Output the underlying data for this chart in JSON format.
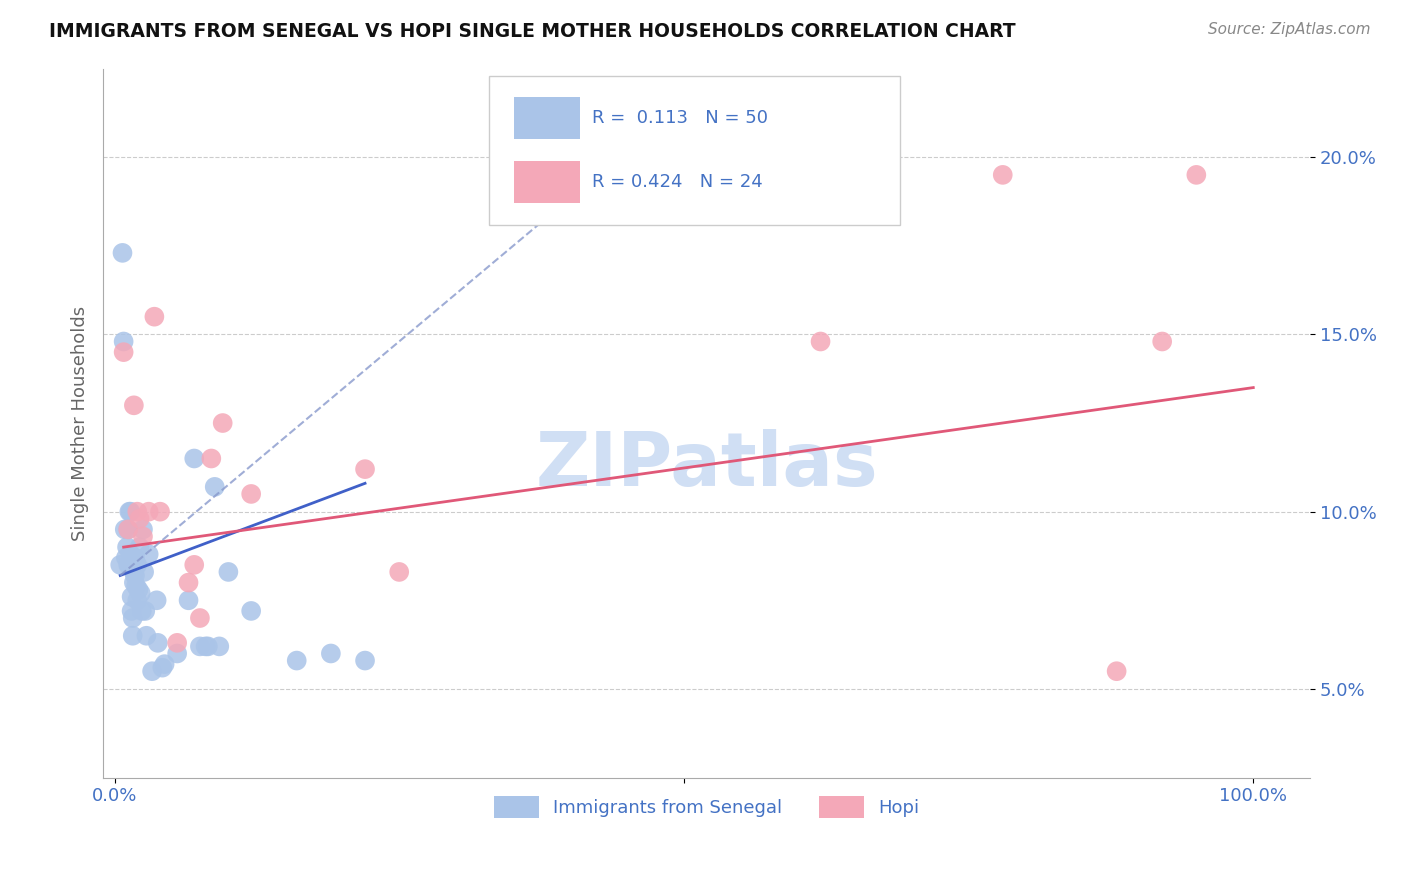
{
  "title": "IMMIGRANTS FROM SENEGAL VS HOPI SINGLE MOTHER HOUSEHOLDS CORRELATION CHART",
  "source": "Source: ZipAtlas.com",
  "ylabel": "Single Mother Households",
  "blue_R": "0.113",
  "blue_N": "50",
  "pink_R": "0.424",
  "pink_N": "24",
  "blue_color": "#aac4e8",
  "pink_color": "#f4a8b8",
  "line_blue_color": "#4060c8",
  "line_pink_color": "#e05878",
  "dashed_line_color": "#8899cc",
  "axis_color": "#4472c4",
  "grid_color": "#cccccc",
  "title_color": "#111111",
  "watermark": "ZIPatlas",
  "watermark_color": "#d0dff4",
  "xlim": [
    -0.01,
    1.05
  ],
  "ylim": [
    0.025,
    0.225
  ],
  "x_ticks": [
    0.0,
    0.5,
    1.0
  ],
  "x_tick_labels": [
    "0.0%",
    "",
    "100.0%"
  ],
  "y_ticks": [
    0.05,
    0.1,
    0.15,
    0.2
  ],
  "y_tick_labels": [
    "5.0%",
    "10.0%",
    "15.0%",
    "20.0%"
  ],
  "blue_scatter_x": [
    0.005,
    0.007,
    0.008,
    0.009,
    0.01,
    0.011,
    0.012,
    0.012,
    0.013,
    0.013,
    0.014,
    0.014,
    0.015,
    0.015,
    0.016,
    0.016,
    0.017,
    0.017,
    0.018,
    0.018,
    0.019,
    0.02,
    0.02,
    0.021,
    0.022,
    0.023,
    0.024,
    0.025,
    0.026,
    0.027,
    0.028,
    0.03,
    0.033,
    0.037,
    0.038,
    0.042,
    0.044,
    0.055,
    0.065,
    0.07,
    0.075,
    0.08,
    0.082,
    0.088,
    0.092,
    0.1,
    0.12,
    0.16,
    0.19,
    0.22
  ],
  "blue_scatter_y": [
    0.085,
    0.173,
    0.148,
    0.095,
    0.087,
    0.09,
    0.095,
    0.085,
    0.1,
    0.085,
    0.1,
    0.088,
    0.076,
    0.072,
    0.07,
    0.065,
    0.083,
    0.08,
    0.087,
    0.082,
    0.079,
    0.085,
    0.075,
    0.078,
    0.09,
    0.077,
    0.072,
    0.095,
    0.083,
    0.072,
    0.065,
    0.088,
    0.055,
    0.075,
    0.063,
    0.056,
    0.057,
    0.06,
    0.075,
    0.115,
    0.062,
    0.062,
    0.062,
    0.107,
    0.062,
    0.083,
    0.072,
    0.058,
    0.06,
    0.058
  ],
  "pink_scatter_x": [
    0.008,
    0.012,
    0.017,
    0.02,
    0.022,
    0.025,
    0.03,
    0.035,
    0.04,
    0.055,
    0.065,
    0.07,
    0.075,
    0.085,
    0.095,
    0.12,
    0.22,
    0.25,
    0.55,
    0.62,
    0.78,
    0.88,
    0.92,
    0.95
  ],
  "pink_scatter_y": [
    0.145,
    0.095,
    0.13,
    0.1,
    0.098,
    0.093,
    0.1,
    0.155,
    0.1,
    0.063,
    0.08,
    0.085,
    0.07,
    0.115,
    0.125,
    0.105,
    0.112,
    0.083,
    0.19,
    0.148,
    0.195,
    0.055,
    0.148,
    0.195
  ],
  "blue_trendline_x": [
    0.005,
    0.22
  ],
  "blue_trendline_y": [
    0.082,
    0.108
  ],
  "pink_trendline_x": [
    0.008,
    1.0
  ],
  "pink_trendline_y": [
    0.09,
    0.135
  ],
  "dashed_line_x": [
    0.005,
    0.48
  ],
  "dashed_line_y": [
    0.082,
    0.21
  ],
  "figsize": [
    14.06,
    8.92
  ],
  "dpi": 100
}
